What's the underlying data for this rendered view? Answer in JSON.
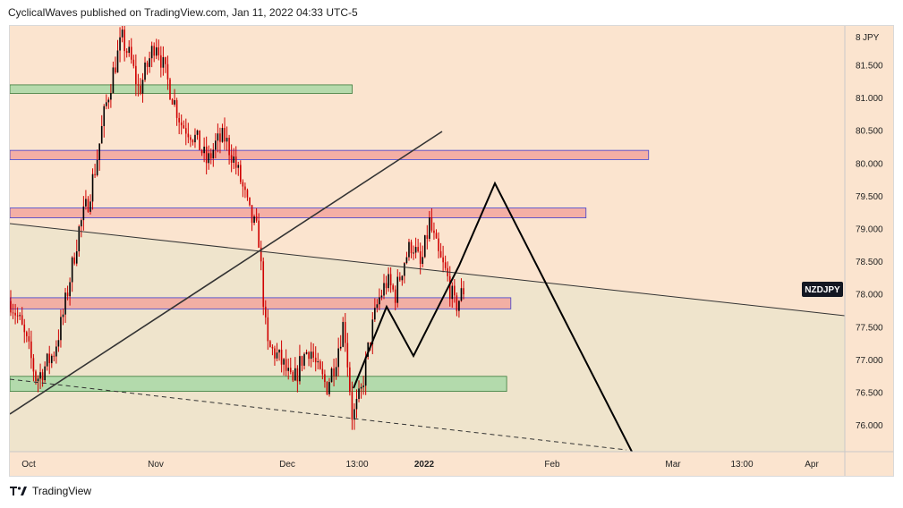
{
  "header": {
    "published_text": "CyclicalWaves published on TradingView.com, Jan 11, 2022 04:33 UTC-5"
  },
  "footer": {
    "brand": "TradingView"
  },
  "colors": {
    "background_upper": "#fbe4cf",
    "background_lower": "#efe4cc",
    "zone_green": "#a8d8a6",
    "zone_red": "#f2a19a",
    "zone_red_border": "#3f3fcf",
    "candle": "#000000",
    "candle_wick_red": "#d00000",
    "symbol_badge": "#131722",
    "trendline": "#333333"
  },
  "chart_data": {
    "type": "candlestick",
    "symbol": "NZDJPY",
    "y_axis": {
      "currency_label": "JPY",
      "ticks": [
        "76.000",
        "76.500",
        "77.000",
        "77.500",
        "78.000",
        "78.500",
        "79.000",
        "79.500",
        "80.000",
        "80.500",
        "81.000",
        "81.500"
      ],
      "top_partial_label": "8",
      "ylim": [
        75.6,
        82.1
      ]
    },
    "x_axis": {
      "ticks": [
        "Oct",
        "Nov",
        "Dec",
        "13:00",
        "2022",
        "Feb",
        "Mar",
        "13:00",
        "Apr"
      ],
      "bold_ticks": [
        "2022"
      ]
    },
    "last_price": 78.07,
    "price_series_approx": [
      [
        0,
        77.9
      ],
      [
        2,
        77.6
      ],
      [
        4,
        77.2
      ],
      [
        6,
        76.7
      ],
      [
        8,
        76.9
      ],
      [
        10,
        77.1
      ],
      [
        12,
        77.6
      ],
      [
        14,
        78.3
      ],
      [
        16,
        79.0
      ],
      [
        18,
        79.4
      ],
      [
        20,
        80.0
      ],
      [
        22,
        80.8
      ],
      [
        24,
        81.4
      ],
      [
        26,
        81.9
      ],
      [
        28,
        81.6
      ],
      [
        30,
        81.1
      ],
      [
        32,
        81.5
      ],
      [
        34,
        81.9
      ],
      [
        36,
        81.4
      ],
      [
        38,
        81.0
      ],
      [
        40,
        80.6
      ],
      [
        42,
        80.5
      ],
      [
        44,
        80.3
      ],
      [
        46,
        80.0
      ],
      [
        48,
        80.3
      ],
      [
        50,
        80.4
      ],
      [
        52,
        80.1
      ],
      [
        54,
        79.7
      ],
      [
        56,
        79.2
      ],
      [
        58,
        78.9
      ],
      [
        60,
        77.2
      ],
      [
        62,
        77.1
      ],
      [
        64,
        76.9
      ],
      [
        66,
        76.6
      ],
      [
        68,
        77.0
      ],
      [
        70,
        77.2
      ],
      [
        72,
        76.8
      ],
      [
        74,
        76.6
      ],
      [
        76,
        77.0
      ],
      [
        78,
        77.6
      ],
      [
        80,
        76.1
      ],
      [
        82,
        76.5
      ],
      [
        84,
        77.3
      ],
      [
        86,
        77.9
      ],
      [
        88,
        78.2
      ],
      [
        90,
        78.0
      ],
      [
        92,
        78.5
      ],
      [
        94,
        78.8
      ],
      [
        96,
        78.4
      ],
      [
        98,
        79.1
      ],
      [
        100,
        78.6
      ],
      [
        102,
        78.3
      ],
      [
        104,
        77.8
      ],
      [
        106,
        78.07
      ]
    ],
    "zones": [
      {
        "type": "green",
        "y_top": 81.2,
        "y_bottom": 81.07,
        "x_end_fraction": 0.41
      },
      {
        "type": "red",
        "y_top": 80.2,
        "y_bottom": 80.06,
        "x_end_fraction": 0.765
      },
      {
        "type": "red",
        "y_top": 79.32,
        "y_bottom": 79.17,
        "x_end_fraction": 0.69
      },
      {
        "type": "red",
        "y_top": 77.95,
        "y_bottom": 77.78,
        "x_end_fraction": 0.6
      },
      {
        "type": "green",
        "y_top": 76.75,
        "y_bottom": 76.52,
        "x_end_fraction": 0.595
      }
    ],
    "lower_shading_below": 79.15,
    "projection_path": [
      [
        76.6
      ],
      [
        77.9
      ],
      [
        77.1
      ],
      [
        78.5
      ],
      [
        79.75
      ],
      [
        75.75
      ]
    ]
  }
}
